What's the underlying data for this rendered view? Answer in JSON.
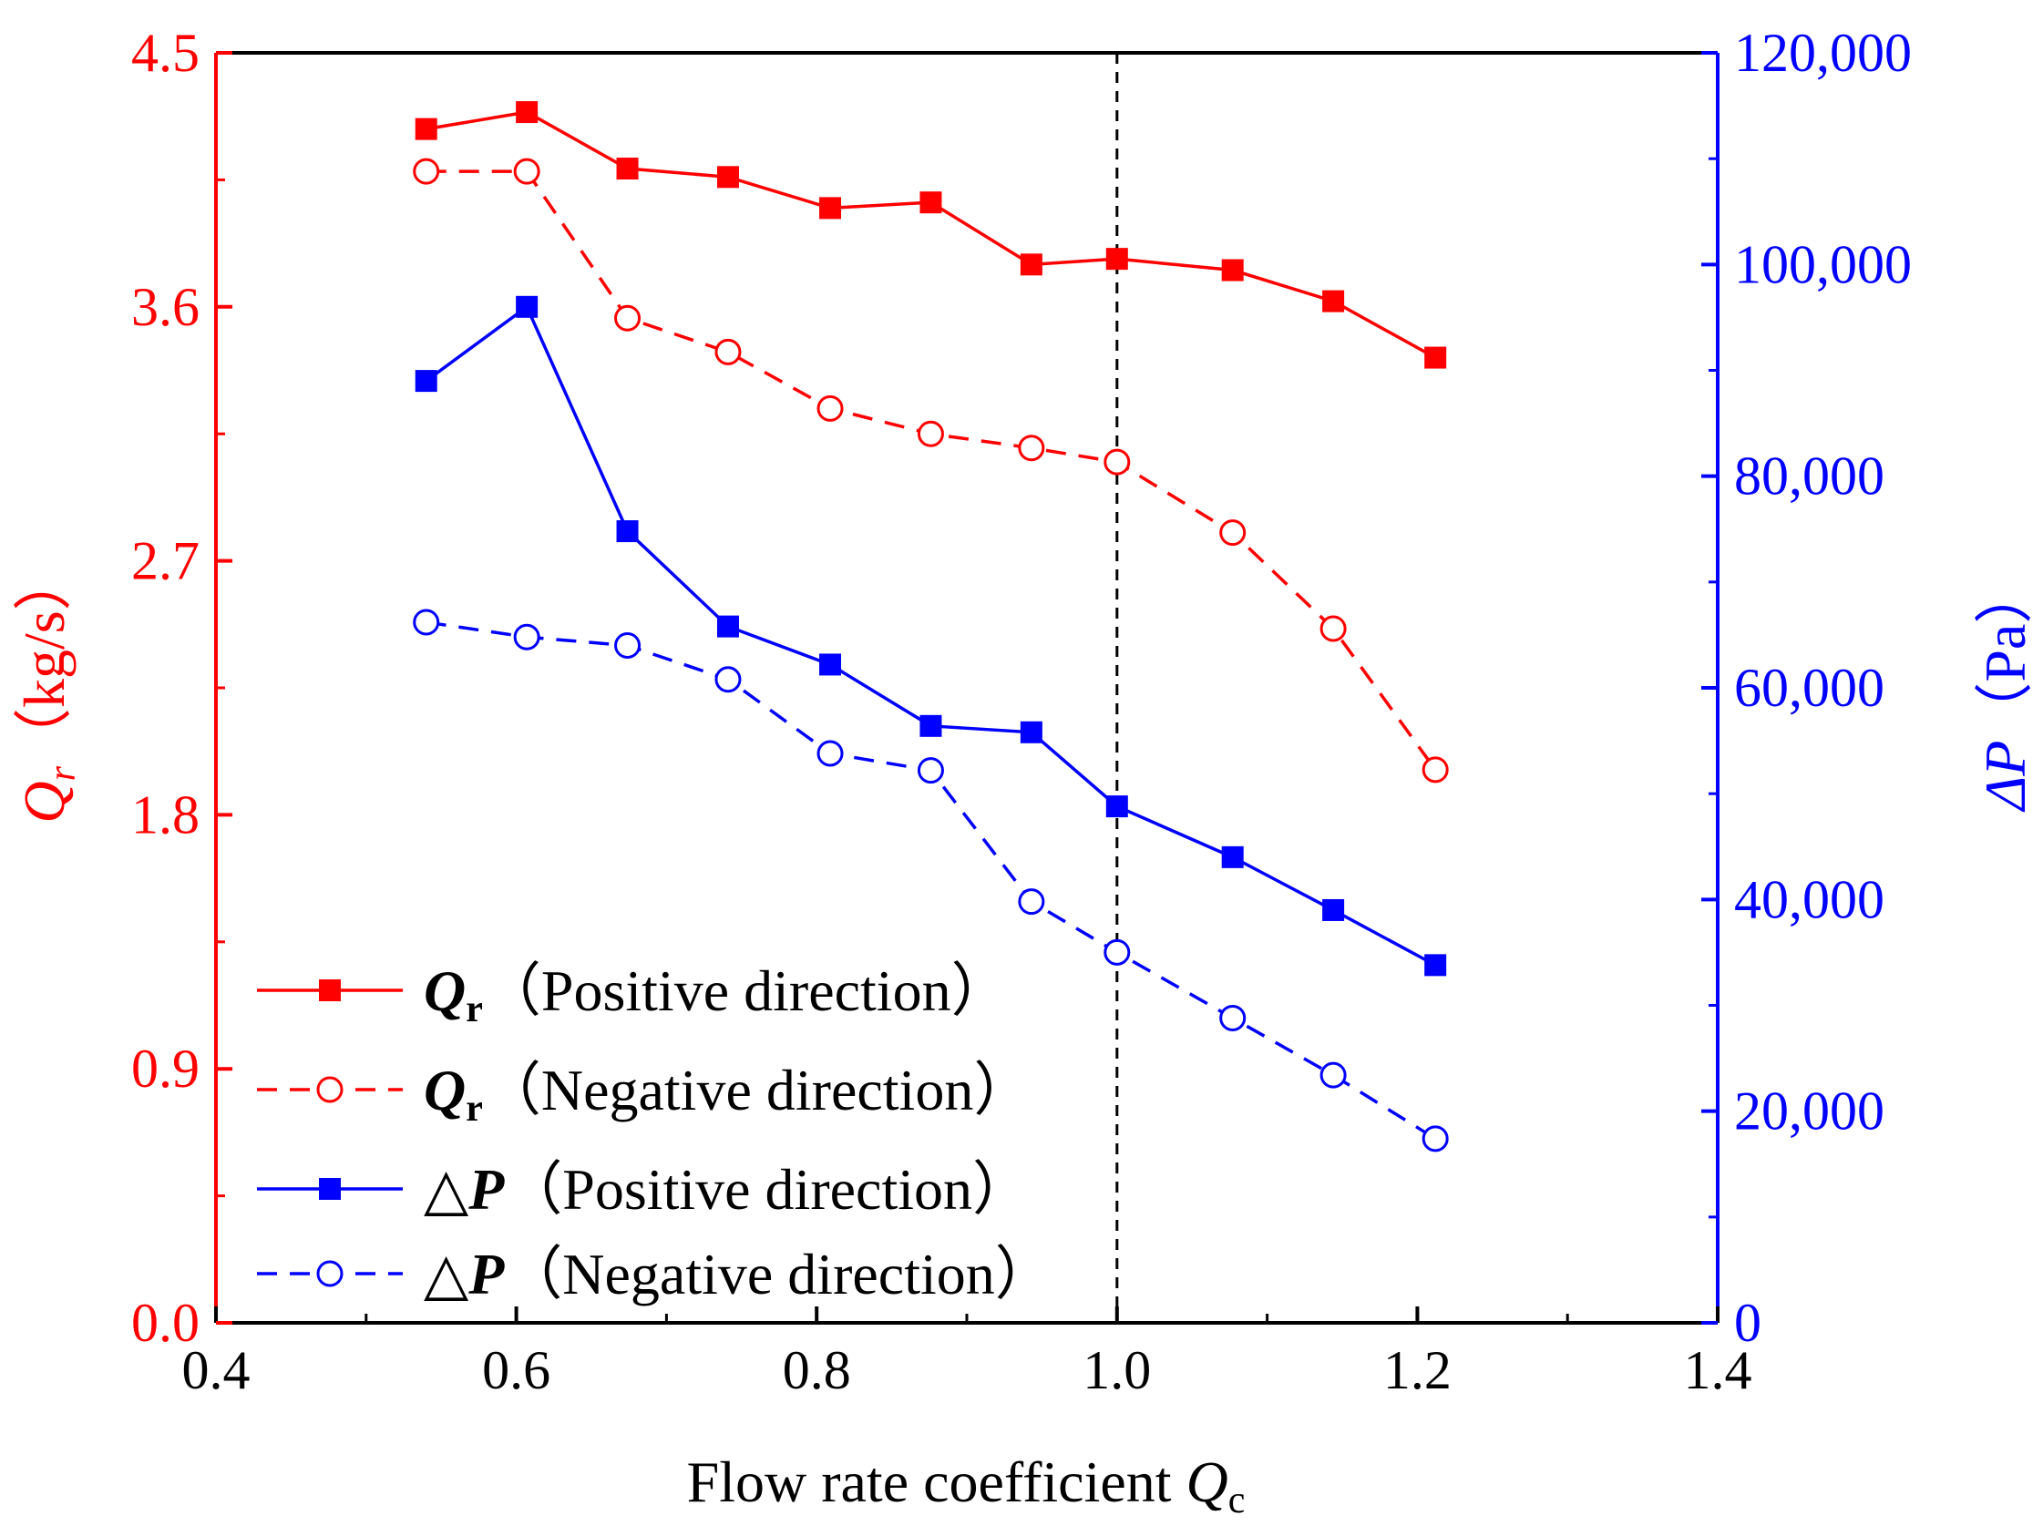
{
  "chart_data": {
    "type": "line",
    "xlabel": "Flow rate coefficient ",
    "xlabel_symbol": "Q",
    "xlabel_sub": "c",
    "ylabel_left": "（kg/s）",
    "ylabel_left_symbol": "Q",
    "ylabel_left_sub": "r",
    "ylabel_right": "（Pa）",
    "ylabel_right_symbol": "ΔP",
    "xlim": [
      0.4,
      1.4
    ],
    "ylim_left": [
      0,
      4.5
    ],
    "ylim_right": [
      0,
      120000
    ],
    "x_ticks": [
      "0.4",
      "0.6",
      "0.8",
      "1.0",
      "1.2",
      "1.4"
    ],
    "y_left_ticks": [
      "0.0",
      "0.9",
      "1.8",
      "2.7",
      "3.6",
      "4.5"
    ],
    "y_right_ticks": [
      "0",
      "20,000",
      "40,000",
      "60,000",
      "80,000",
      "100,000",
      "120,000"
    ],
    "reference_line_x": 1.0,
    "x": [
      0.54,
      0.607,
      0.674,
      0.741,
      0.809,
      0.876,
      0.943,
      1.0,
      1.077,
      1.144,
      1.212
    ],
    "series": [
      {
        "name": "Qr（Positive direction）",
        "axis": "left",
        "color": "#ff0000",
        "marker": "square",
        "dash": "none",
        "values": [
          4.23,
          4.29,
          4.09,
          4.06,
          3.95,
          3.97,
          3.75,
          3.77,
          3.73,
          3.62,
          3.42
        ]
      },
      {
        "name": "Qr（Negative direction）",
        "axis": "left",
        "color": "#ff0000",
        "marker": "circle",
        "dash": "dashed",
        "values": [
          4.08,
          4.08,
          3.56,
          3.44,
          3.24,
          3.15,
          3.1,
          3.05,
          2.8,
          2.46,
          1.96
        ]
      },
      {
        "name": "ΔP（Positive direction）",
        "axis": "right",
        "color": "#0000ff",
        "marker": "square",
        "dash": "none",
        "values": [
          89000,
          96000,
          74800,
          65800,
          62200,
          56400,
          55800,
          48800,
          44000,
          39000,
          33800
        ]
      },
      {
        "name": "ΔP（Negative direction）",
        "axis": "right",
        "color": "#0000ff",
        "marker": "circle",
        "dash": "dashed",
        "values": [
          66200,
          64800,
          64000,
          60800,
          53800,
          52200,
          39800,
          35000,
          28800,
          23400,
          17400
        ]
      }
    ],
    "legend": [
      {
        "symbol": "Q",
        "sub": "r",
        "text": "（Positive direction）"
      },
      {
        "symbol": "Q",
        "sub": "r",
        "text": "（Negative direction）"
      },
      {
        "symbol": "△P",
        "sub": "",
        "text": "（Positive direction）"
      },
      {
        "symbol": "△P",
        "sub": "",
        "text": "（Negative direction）"
      }
    ],
    "legend_position": "lower-left"
  }
}
